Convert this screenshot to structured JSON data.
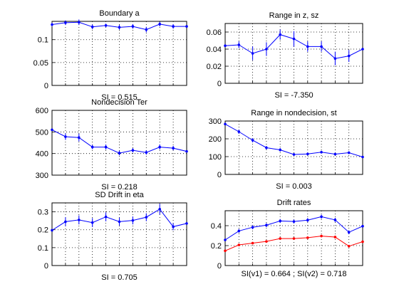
{
  "chart_data": [
    {
      "type": "line",
      "title": "Boundary a",
      "si_label": "SI = 0.515",
      "ylim": [
        0,
        0.14
      ],
      "yticks": [
        0,
        0.05,
        0.1
      ],
      "ytick_labels": [
        "0",
        "0.05",
        "0.1"
      ],
      "grid": true,
      "series": [
        {
          "color": "#0000ff",
          "values": [
            0.133,
            0.137,
            0.138,
            0.128,
            0.131,
            0.127,
            0.129,
            0.122,
            0.134,
            0.129,
            0.129
          ],
          "errors": [
            0.004,
            0.005,
            0.006,
            0.005,
            0.004,
            0.005,
            0.005,
            0.006,
            0.005,
            0.005,
            0.0
          ]
        }
      ]
    },
    {
      "type": "line",
      "title": "Range in z, sz",
      "si_label": "SI = -7.350",
      "ylim": [
        0,
        0.07
      ],
      "yticks": [
        0,
        0.02,
        0.04,
        0.06
      ],
      "ytick_labels": [
        "0",
        "0.02",
        "0.04",
        "0.06"
      ],
      "grid": true,
      "series": [
        {
          "color": "#0000ff",
          "values": [
            0.044,
            0.045,
            0.035,
            0.04,
            0.057,
            0.052,
            0.043,
            0.043,
            0.029,
            0.032,
            0.04
          ],
          "errors": [
            0.0,
            0.004,
            0.008,
            0.008,
            0.006,
            0.009,
            0.006,
            0.006,
            0.008,
            0.007,
            0.0
          ]
        }
      ]
    },
    {
      "type": "line",
      "title": "Nondecision Ter",
      "si_label": "SI = 0.218",
      "ylim": [
        300,
        600
      ],
      "yticks": [
        300,
        400,
        500,
        600
      ],
      "ytick_labels": [
        "300",
        "400",
        "500",
        "600"
      ],
      "grid": true,
      "series": [
        {
          "color": "#0000ff",
          "values": [
            510,
            478,
            474,
            430,
            430,
            402,
            415,
            405,
            430,
            425,
            410
          ],
          "errors": [
            0,
            15,
            18,
            10,
            12,
            10,
            10,
            10,
            12,
            10,
            0
          ]
        }
      ]
    },
    {
      "type": "line",
      "title": "Range in nondecision, st",
      "si_label": "SI = 0.003",
      "ylim": [
        0,
        300
      ],
      "yticks": [
        0,
        100,
        200,
        300
      ],
      "ytick_labels": [
        "0",
        "100",
        "200",
        "300"
      ],
      "grid": true,
      "series": [
        {
          "color": "#0000ff",
          "values": [
            283,
            240,
            192,
            150,
            138,
            112,
            115,
            125,
            114,
            122,
            98
          ],
          "errors": [
            0,
            12,
            12,
            10,
            10,
            8,
            8,
            8,
            8,
            8,
            0
          ]
        }
      ]
    },
    {
      "type": "line",
      "title": "SD Drift in eta",
      "si_label": "SI = 0.705",
      "ylim": [
        0,
        0.35
      ],
      "yticks": [
        0,
        0.1,
        0.2,
        0.3
      ],
      "ytick_labels": [
        "0",
        "0.1",
        "0.2",
        "0.3"
      ],
      "grid": true,
      "series": [
        {
          "color": "#0000ff",
          "values": [
            0.197,
            0.245,
            0.255,
            0.24,
            0.272,
            0.245,
            0.252,
            0.27,
            0.315,
            0.217,
            0.235
          ],
          "errors": [
            0.0,
            0.025,
            0.025,
            0.025,
            0.025,
            0.022,
            0.022,
            0.022,
            0.03,
            0.02,
            0.0
          ]
        }
      ]
    },
    {
      "type": "line",
      "title": "Drift rates",
      "si_label": "SI(v1) = 0.664 ; SI(v2) = 0.718",
      "ylim": [
        0,
        0.55
      ],
      "yticks": [
        0,
        0.2,
        0.4
      ],
      "ytick_labels": [
        "0",
        "0.2",
        "0.4"
      ],
      "grid": true,
      "series": [
        {
          "color": "#0000ff",
          "values": [
            0.257,
            0.347,
            0.384,
            0.405,
            0.447,
            0.442,
            0.456,
            0.49,
            0.458,
            0.334,
            0.395
          ],
          "errors": [
            0.0,
            0.02,
            0.02,
            0.02,
            0.02,
            0.02,
            0.02,
            0.02,
            0.02,
            0.02,
            0.0
          ]
        },
        {
          "color": "#ff0000",
          "values": [
            0.148,
            0.207,
            0.225,
            0.242,
            0.271,
            0.271,
            0.279,
            0.296,
            0.286,
            0.194,
            0.239
          ],
          "errors": [
            0.0,
            0.012,
            0.012,
            0.012,
            0.012,
            0.012,
            0.012,
            0.012,
            0.012,
            0.012,
            0.0
          ]
        }
      ]
    }
  ]
}
